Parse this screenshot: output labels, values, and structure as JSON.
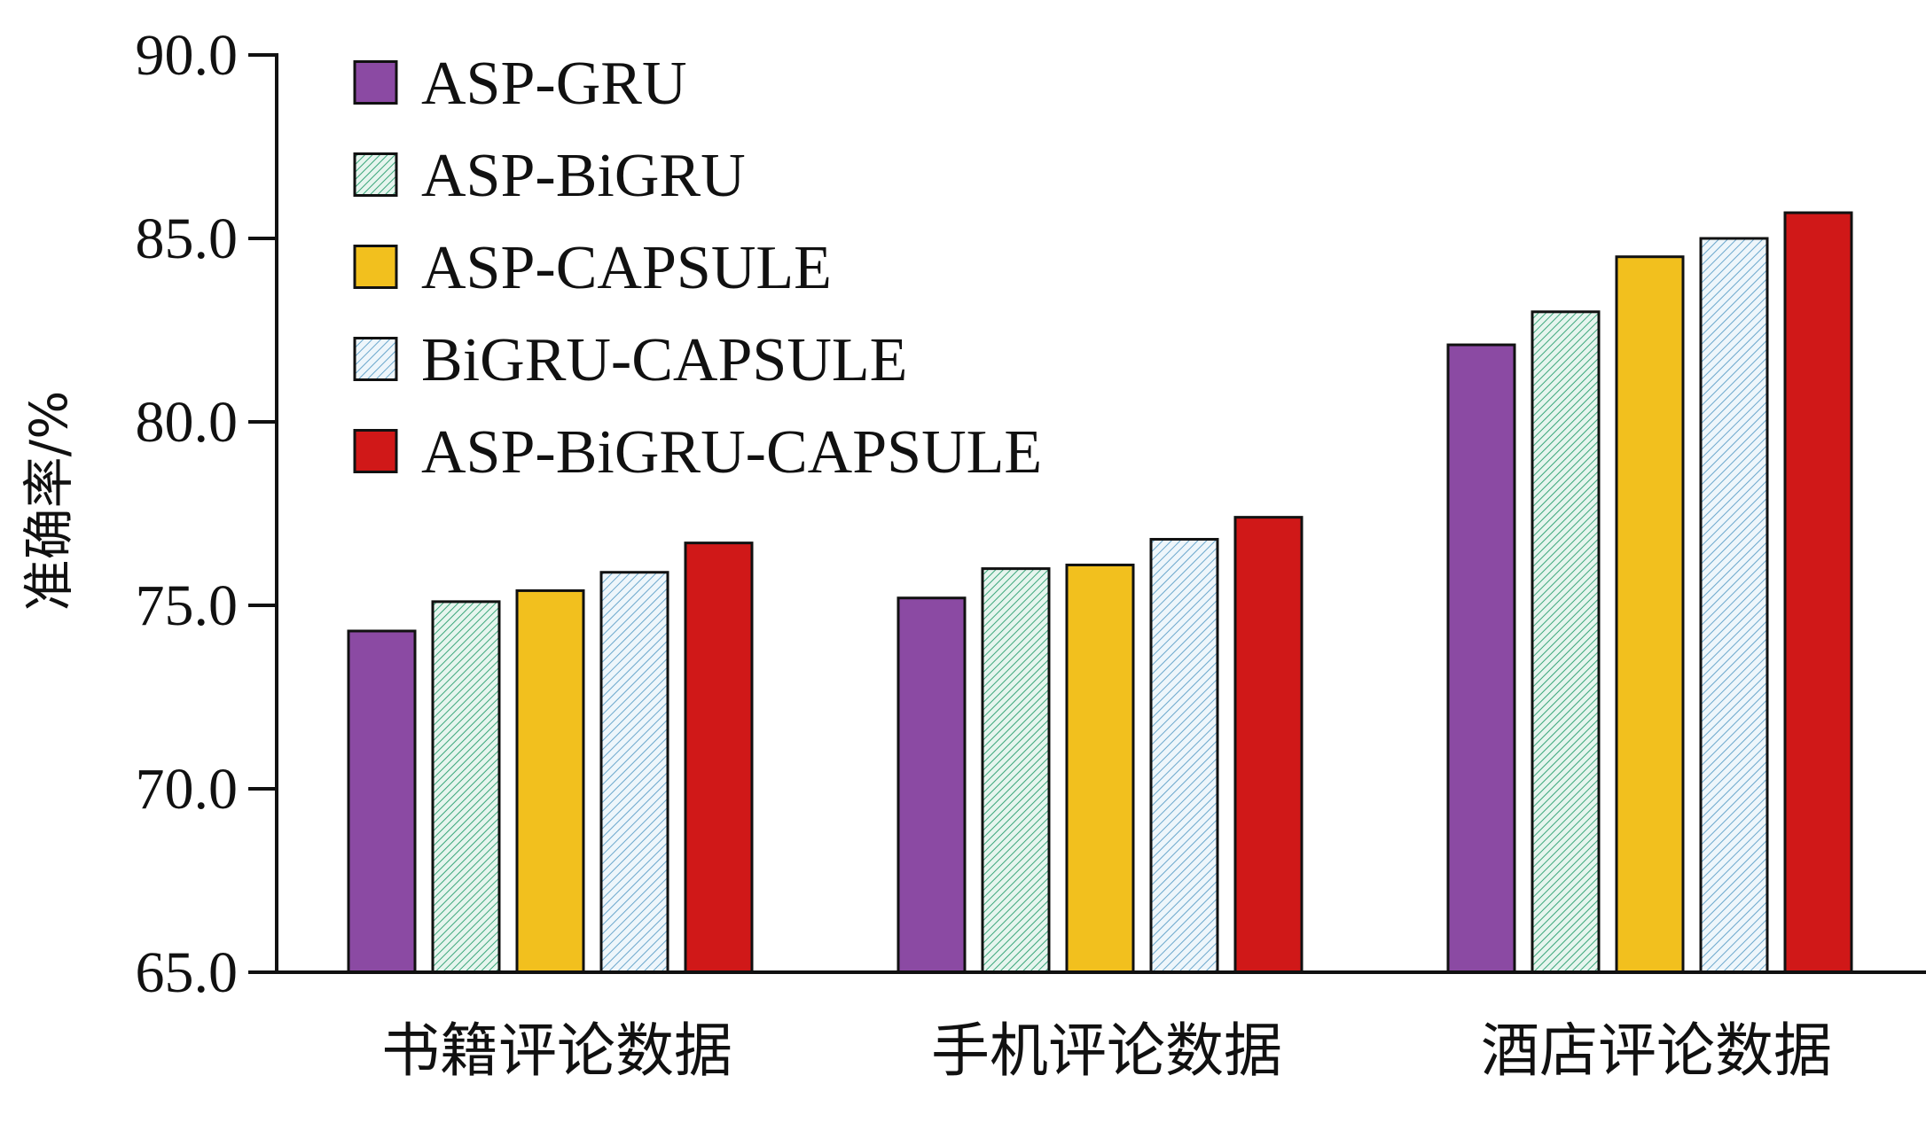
{
  "chart_data": {
    "type": "bar",
    "title": "",
    "xlabel": "",
    "ylabel": "准确率/%",
    "ylim": [
      65.0,
      90.0
    ],
    "yticks": [
      "65.0",
      "70.0",
      "75.0",
      "80.0",
      "85.0",
      "90.0"
    ],
    "categories": [
      "书籍评论数据",
      "手机评论数据",
      "酒店评论数据"
    ],
    "legend_position": "top-left",
    "grid": false,
    "series": [
      {
        "name": "ASP-GRU",
        "color": "#8b4aa3",
        "pattern": "solid",
        "values": [
          74.3,
          75.2,
          82.1
        ]
      },
      {
        "name": "ASP-BiGRU",
        "color": "#5fbf9a",
        "pattern": "hatch-dense",
        "values": [
          75.1,
          76.0,
          83.0
        ]
      },
      {
        "name": "ASP-CAPSULE",
        "color": "#f2c01e",
        "pattern": "solid",
        "values": [
          75.4,
          76.1,
          84.5
        ]
      },
      {
        "name": "BiGRU-CAPSULE",
        "color": "#7fb6d6",
        "pattern": "hatch-light",
        "values": [
          75.9,
          76.8,
          85.0
        ]
      },
      {
        "name": "ASP-BiGRU-CAPSULE",
        "color": "#d01818",
        "pattern": "solid",
        "values": [
          76.7,
          77.4,
          85.7
        ]
      }
    ]
  }
}
